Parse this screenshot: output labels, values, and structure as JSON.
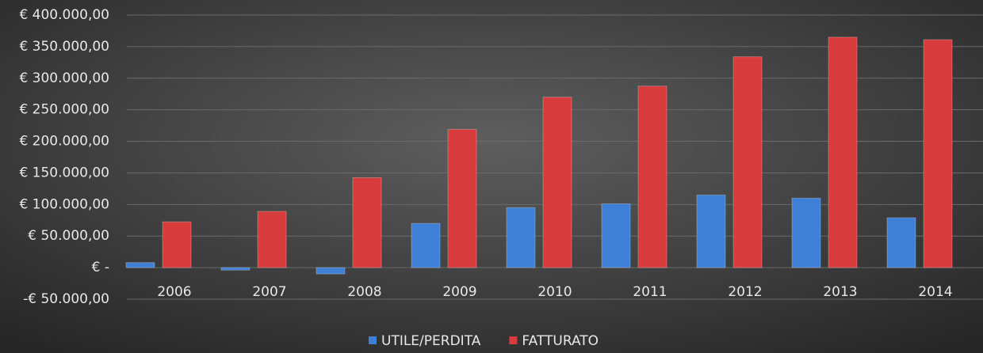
{
  "chart_data": {
    "type": "bar",
    "categories": [
      "2006",
      "2007",
      "2008",
      "2009",
      "2010",
      "2011",
      "2012",
      "2013",
      "2014"
    ],
    "series": [
      {
        "name": "UTILE/PERDITA",
        "color": "#3f7fd6",
        "values": [
          8000,
          -4000,
          -10000,
          70000,
          95000,
          101000,
          115000,
          110000,
          79000
        ]
      },
      {
        "name": "FATTURATO",
        "color": "#d83b3b",
        "values": [
          72500,
          89000,
          142500,
          219000,
          270000,
          287500,
          334000,
          365000,
          361000
        ]
      }
    ],
    "ylim": [
      -50000,
      400000
    ],
    "yticks": [
      {
        "value": -50000,
        "label": "-€ 50.000,00"
      },
      {
        "value": 0,
        "label": "€ -"
      },
      {
        "value": 50000,
        "label": "€ 50.000,00"
      },
      {
        "value": 100000,
        "label": "€ 100.000,00"
      },
      {
        "value": 150000,
        "label": "€ 150.000,00"
      },
      {
        "value": 200000,
        "label": "€ 200.000,00"
      },
      {
        "value": 250000,
        "label": "€ 250.000,00"
      },
      {
        "value": 300000,
        "label": "€ 300.000,00"
      },
      {
        "value": 350000,
        "label": "€ 350.000,00"
      },
      {
        "value": 400000,
        "label": "€ 400.000,00"
      }
    ],
    "grid": true,
    "legend": "bottom"
  }
}
